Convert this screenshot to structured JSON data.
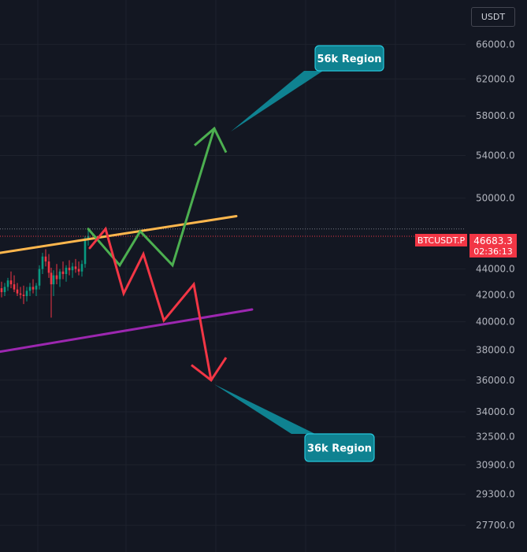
{
  "chart_data": {
    "type": "line",
    "symbol": "BTCUSDT.P",
    "currency": "USDT",
    "last_price": "46683.3",
    "countdown": "02:36:13",
    "y_axis_ticks": [
      "66000.0",
      "62000.0",
      "58000.0",
      "54000.0",
      "50000.0",
      "44000.0",
      "42000.0",
      "40000.0",
      "38000.0",
      "36000.0",
      "34000.0",
      "32500.0",
      "30900.0",
      "29300.0",
      "27700.0"
    ],
    "y_axis_values": [
      66000,
      62000,
      58000,
      54000,
      50000,
      44000,
      42000,
      40000,
      38000,
      36000,
      34000,
      32500,
      30900,
      29300,
      27700
    ],
    "log_scale": true,
    "ylim": [
      26400,
      71500
    ],
    "grid": true,
    "annotations": [
      {
        "text": "56k Region",
        "target_price": 57500,
        "color": "#0f8291"
      },
      {
        "text": "36k Region",
        "target_price": 36000,
        "color": "#0f8291"
      }
    ],
    "series": [
      {
        "color": "#ffb74d",
        "x": [
          0,
          300
        ],
        "y": [
          45300,
          48400
        ]
      },
      {
        "color": "#9c27b0",
        "x": [
          0,
          320
        ],
        "y": [
          37900,
          40900
        ]
      },
      {
        "color": "#4caf50",
        "x": [
          112,
          152,
          178,
          219,
          272
        ],
        "y": [
          47300,
          44300,
          47100,
          44300,
          56700
        ]
      },
      {
        "color": "#f23645",
        "x": [
          114,
          134,
          157,
          182,
          208,
          246,
          268
        ],
        "y": [
          45700,
          47300,
          42100,
          45200,
          40100,
          42800,
          36000
        ]
      }
    ],
    "candles": [
      {
        "x": 2,
        "o": 42500,
        "h": 43000,
        "l": 41800,
        "c": 42200
      },
      {
        "x": 6,
        "o": 42200,
        "h": 42900,
        "l": 41900,
        "c": 42600
      },
      {
        "x": 10,
        "o": 42600,
        "h": 43300,
        "l": 42300,
        "c": 43100
      },
      {
        "x": 14,
        "o": 43100,
        "h": 43800,
        "l": 42500,
        "c": 42800
      },
      {
        "x": 18,
        "o": 42800,
        "h": 43500,
        "l": 42200,
        "c": 42400
      },
      {
        "x": 22,
        "o": 42400,
        "h": 42900,
        "l": 41900,
        "c": 42100
      },
      {
        "x": 26,
        "o": 42100,
        "h": 42600,
        "l": 41700,
        "c": 42000
      },
      {
        "x": 30,
        "o": 42000,
        "h": 42700,
        "l": 41300,
        "c": 41900
      },
      {
        "x": 34,
        "o": 41900,
        "h": 42600,
        "l": 41500,
        "c": 42300
      },
      {
        "x": 38,
        "o": 42300,
        "h": 42900,
        "l": 41900,
        "c": 42600
      },
      {
        "x": 42,
        "o": 42600,
        "h": 43200,
        "l": 42100,
        "c": 42400
      },
      {
        "x": 46,
        "o": 42400,
        "h": 42900,
        "l": 41900,
        "c": 42700
      },
      {
        "x": 50,
        "o": 42700,
        "h": 44300,
        "l": 42400,
        "c": 44000
      },
      {
        "x": 54,
        "o": 44000,
        "h": 45300,
        "l": 43600,
        "c": 45000
      },
      {
        "x": 58,
        "o": 45000,
        "h": 45600,
        "l": 44200,
        "c": 44600
      },
      {
        "x": 62,
        "o": 44600,
        "h": 45200,
        "l": 43300,
        "c": 43700
      },
      {
        "x": 65,
        "o": 43700,
        "h": 44100,
        "l": 40300,
        "c": 42800
      },
      {
        "x": 68,
        "o": 42800,
        "h": 43900,
        "l": 41900,
        "c": 43500
      },
      {
        "x": 72,
        "o": 43500,
        "h": 44400,
        "l": 42800,
        "c": 43200
      },
      {
        "x": 76,
        "o": 43200,
        "h": 44000,
        "l": 42600,
        "c": 43800
      },
      {
        "x": 80,
        "o": 43800,
        "h": 44600,
        "l": 43200,
        "c": 43600
      },
      {
        "x": 84,
        "o": 43600,
        "h": 44300,
        "l": 43000,
        "c": 44100
      },
      {
        "x": 88,
        "o": 44100,
        "h": 44700,
        "l": 43500,
        "c": 43900
      },
      {
        "x": 92,
        "o": 43900,
        "h": 44500,
        "l": 43300,
        "c": 44200
      },
      {
        "x": 96,
        "o": 44200,
        "h": 44800,
        "l": 43700,
        "c": 44000
      },
      {
        "x": 100,
        "o": 44000,
        "h": 44600,
        "l": 43500,
        "c": 43800
      },
      {
        "x": 104,
        "o": 43800,
        "h": 44700,
        "l": 43400,
        "c": 44400
      },
      {
        "x": 108,
        "o": 44400,
        "h": 46700,
        "l": 44100,
        "c": 46500
      },
      {
        "x": 112,
        "o": 46500,
        "h": 47300,
        "l": 45900,
        "c": 46700
      }
    ]
  }
}
